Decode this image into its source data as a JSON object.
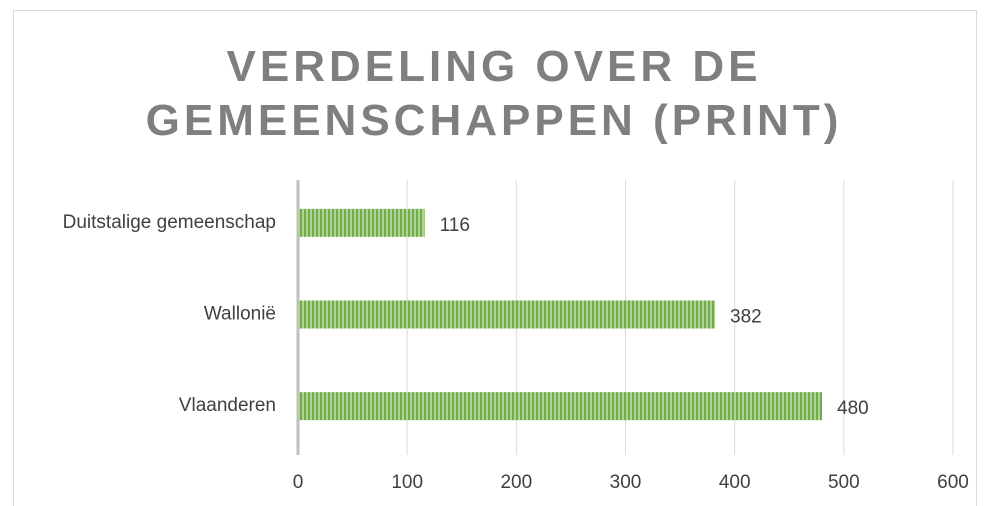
{
  "chart_data": {
    "type": "barh",
    "title": "VERDELING OVER DE GEMEENSCHAPPEN (PRINT)",
    "categories": [
      "Duitstalige gemeenschap",
      "Wallonië",
      "Vlaanderen"
    ],
    "values": [
      116,
      382,
      480
    ],
    "color": "#70ad47",
    "xlim": [
      0,
      600
    ],
    "xticks": [
      0,
      100,
      200,
      300,
      400,
      500,
      600
    ],
    "grid": true
  }
}
